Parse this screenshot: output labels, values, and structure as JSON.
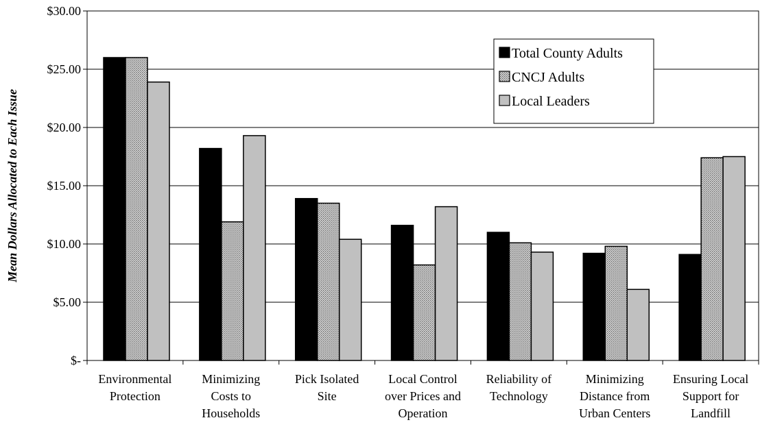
{
  "chart_data": {
    "type": "bar",
    "title": "",
    "xlabel": "",
    "ylabel": "Mean Dollars Allocated to Each Issue",
    "ylim": [
      0,
      30
    ],
    "yticks": [
      0,
      5,
      10,
      15,
      20,
      25,
      30
    ],
    "ytick_labels": [
      "$-",
      "$5.00",
      "$10.00",
      "$15.00",
      "$20.00",
      "$25.00",
      "$30.00"
    ],
    "grid": "horizontal",
    "legend_position": "top-right",
    "categories": [
      [
        "Environmental",
        "Protection"
      ],
      [
        "Minimizing",
        "Costs to",
        "Households"
      ],
      [
        "Pick Isolated",
        "Site"
      ],
      [
        "Local Control",
        "over Prices and",
        "Operation"
      ],
      [
        "Reliability of",
        "Technology"
      ],
      [
        "Minimizing",
        "Distance from",
        "Urban Centers"
      ],
      [
        "Ensuring Local",
        "Support for",
        "Landfill"
      ]
    ],
    "series": [
      {
        "name": "Total County Adults",
        "color": "#000000",
        "pattern": "solid",
        "values": [
          26.0,
          18.2,
          13.9,
          11.6,
          11.0,
          9.2,
          9.1
        ]
      },
      {
        "name": "CNCJ Adults",
        "color": "#b8b8b8",
        "pattern": "dotted",
        "values": [
          26.0,
          11.9,
          13.5,
          8.2,
          10.1,
          9.8,
          17.4
        ]
      },
      {
        "name": "Local Leaders",
        "color": "#c0c0c0",
        "pattern": "solid",
        "values": [
          23.9,
          19.3,
          10.4,
          13.2,
          9.3,
          6.1,
          17.5
        ]
      }
    ]
  }
}
